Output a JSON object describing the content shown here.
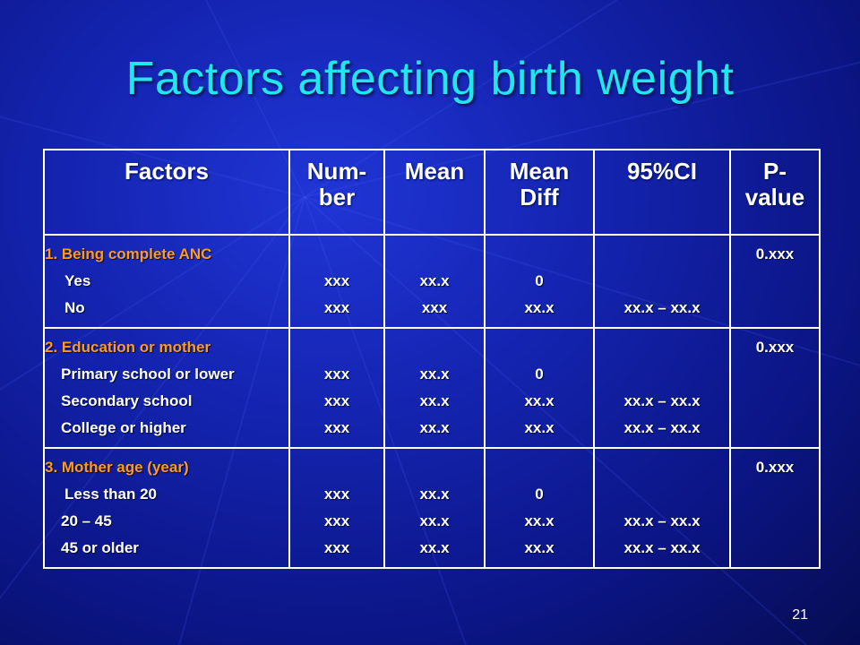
{
  "title": "Factors affecting birth weight",
  "table": {
    "headers": [
      "Factors",
      "Num-\nber",
      "Mean",
      "Mean\nDiff",
      "95%CI",
      "P-\nvalue"
    ],
    "groups": [
      {
        "label": "1. Being complete ANC",
        "rows": [
          {
            "label": "Yes",
            "number": "xxx",
            "mean": "xx.x",
            "mean_diff": "0",
            "ci": ""
          },
          {
            "label": "No",
            "number": "xxx",
            "mean": "xxx",
            "mean_diff": "xx.x",
            "ci": "xx.x – xx.x"
          }
        ],
        "p_value": "0.xxx"
      },
      {
        "label": "2. Education or mother",
        "rows": [
          {
            "label": "Primary school or lower",
            "number": "xxx",
            "mean": "xx.x",
            "mean_diff": "0",
            "ci": ""
          },
          {
            "label": "Secondary school",
            "number": "xxx",
            "mean": "xx.x",
            "mean_diff": "xx.x",
            "ci": "xx.x – xx.x"
          },
          {
            "label": "College or higher",
            "number": "xxx",
            "mean": "xx.x",
            "mean_diff": "xx.x",
            "ci": "xx.x – xx.x"
          }
        ],
        "p_value": "0.xxx"
      },
      {
        "label": "3. Mother age (year)",
        "rows": [
          {
            "label": "Less than 20",
            "number": "xxx",
            "mean": "xx.x",
            "mean_diff": "0",
            "ci": ""
          },
          {
            "label": "20 – 45",
            "number": "xxx",
            "mean": "xx.x",
            "mean_diff": "xx.x",
            "ci": "xx.x – xx.x"
          },
          {
            "label": "45 or older",
            "number": "xxx",
            "mean": "xx.x",
            "mean_diff": "xx.x",
            "ci": "xx.x – xx.x"
          }
        ],
        "p_value": "0.xxx"
      }
    ]
  },
  "page_number": "21",
  "colors": {
    "title": "#22e6ee",
    "group_label": "#ff9a1e",
    "text": "#ffffff",
    "background": "#1424b0"
  }
}
